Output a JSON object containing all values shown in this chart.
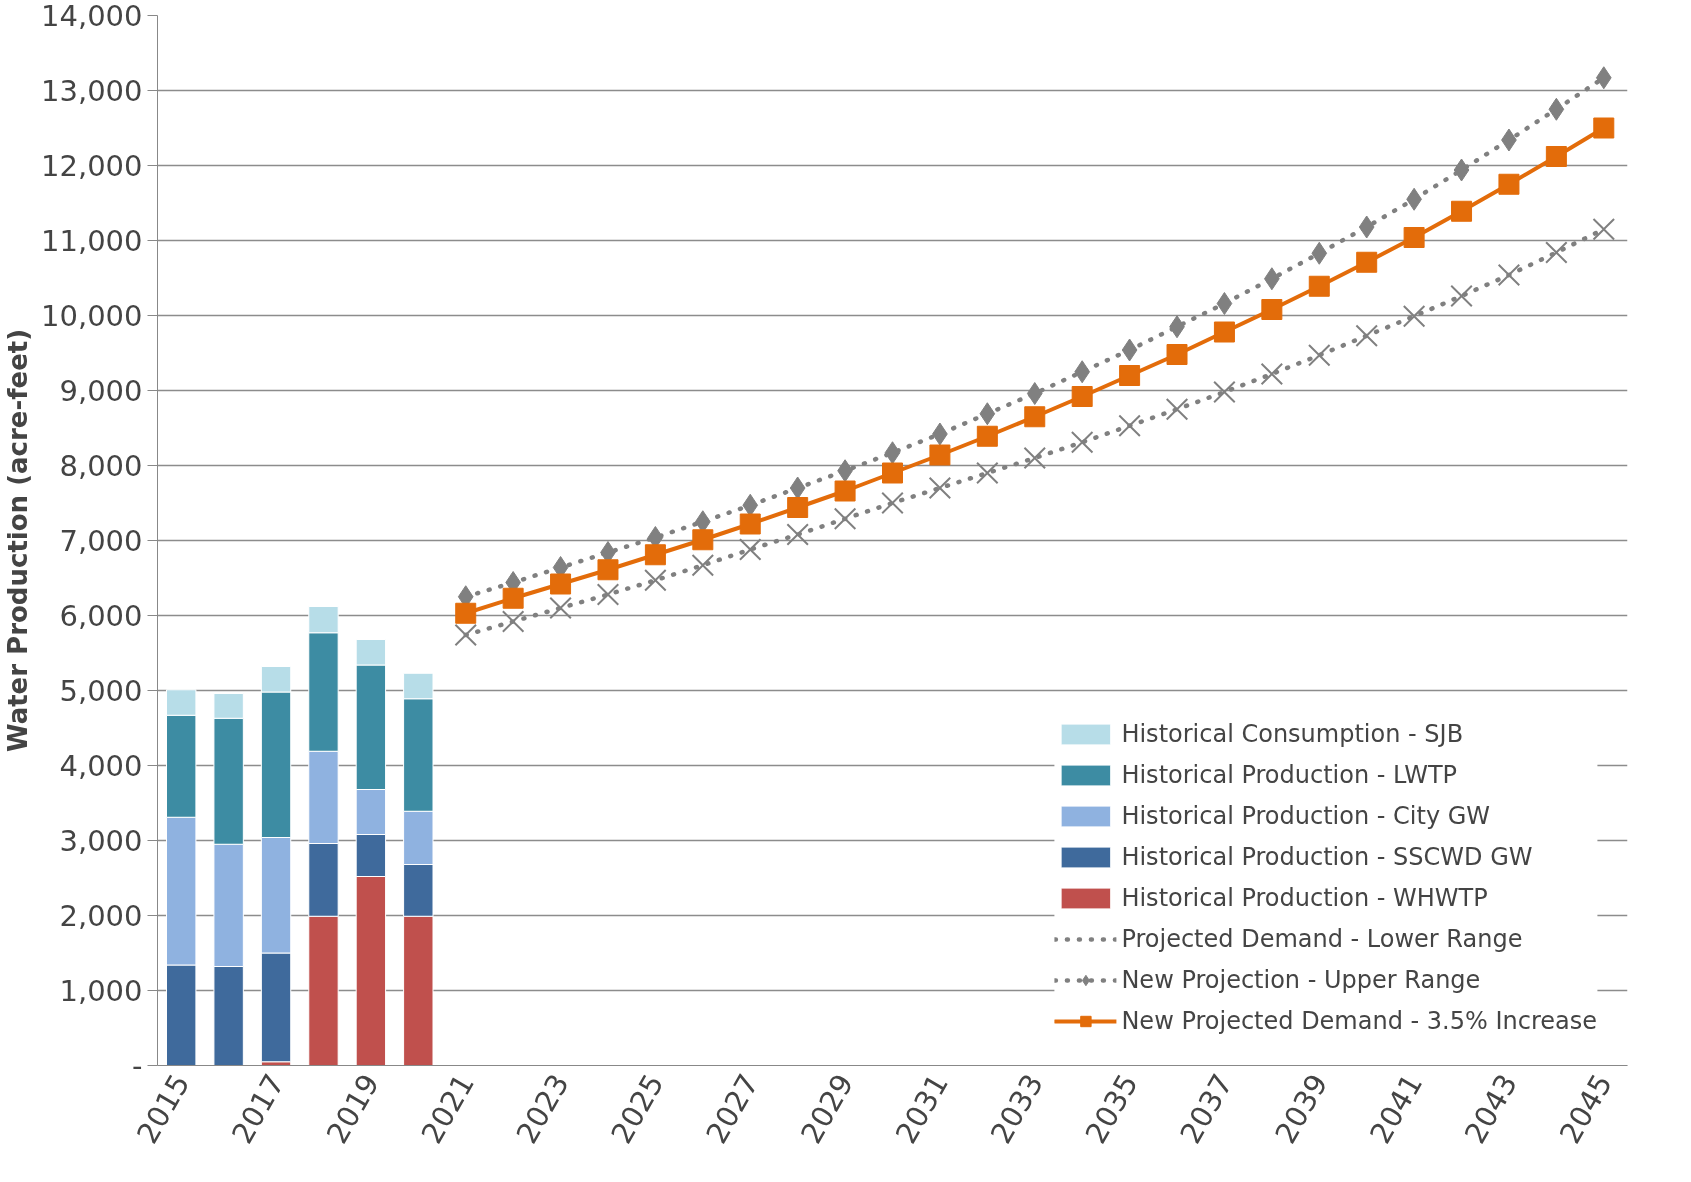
{
  "chart_data": {
    "type": "bar",
    "stacked": true,
    "ylabel": "Water Production (acre-feet)",
    "categories": [
      "2015",
      null,
      "2017",
      null,
      "2019",
      null,
      "2021",
      null,
      "2023",
      null,
      "2025",
      null,
      "2027",
      null,
      "2029",
      null,
      "2031",
      null,
      "2033",
      null,
      "2035",
      null,
      "2037",
      null,
      "2039",
      null,
      "2041",
      null,
      "2043",
      null,
      "2045"
    ],
    "ylim": [
      0,
      14000
    ],
    "yticks": [
      {
        "value": 0,
        "label": "-"
      },
      {
        "value": 1000,
        "label": "1,000"
      },
      {
        "value": 2000,
        "label": "2,000"
      },
      {
        "value": 3000,
        "label": "3,000"
      },
      {
        "value": 4000,
        "label": "4,000"
      },
      {
        "value": 5000,
        "label": "5,000"
      },
      {
        "value": 6000,
        "label": "6,000"
      },
      {
        "value": 7000,
        "label": "7,000"
      },
      {
        "value": 8000,
        "label": "8,000"
      },
      {
        "value": 9000,
        "label": "9,000"
      },
      {
        "value": 10000,
        "label": "10,000"
      },
      {
        "value": 11000,
        "label": "11,000"
      },
      {
        "value": 12000,
        "label": "12,000"
      },
      {
        "value": 13000,
        "label": "13,000"
      },
      {
        "value": 14000,
        "label": "14,000"
      }
    ],
    "grid": "y",
    "legend": "bottom right",
    "series": [
      {
        "name": "Historical Production - WHWTP",
        "color": "#c0504d",
        "values": [
          0,
          0,
          50,
          1990,
          2520,
          1990,
          null,
          null,
          null,
          null,
          null,
          null,
          null,
          null,
          null,
          null,
          null,
          null,
          null,
          null,
          null,
          null,
          null,
          null,
          null,
          null,
          null,
          null,
          null,
          null,
          null
        ]
      },
      {
        "name": "Historical Production - SSCWD GW",
        "color": "#3f6a9c",
        "values": [
          1340,
          1320,
          1450,
          970,
          560,
          690,
          null,
          null,
          null,
          null,
          null,
          null,
          null,
          null,
          null,
          null,
          null,
          null,
          null,
          null,
          null,
          null,
          null,
          null,
          null,
          null,
          null,
          null,
          null,
          null,
          null
        ]
      },
      {
        "name": "Historical Production - City GW",
        "color": "#8fb2e0",
        "values": [
          1970,
          1630,
          1540,
          1230,
          600,
          710,
          null,
          null,
          null,
          null,
          null,
          null,
          null,
          null,
          null,
          null,
          null,
          null,
          null,
          null,
          null,
          null,
          null,
          null,
          null,
          null,
          null,
          null,
          null,
          null,
          null
        ]
      },
      {
        "name": "Historical Production - LWTP",
        "color": "#3d8ca3",
        "values": [
          1360,
          1680,
          1940,
          1580,
          1660,
          1500,
          null,
          null,
          null,
          null,
          null,
          null,
          null,
          null,
          null,
          null,
          null,
          null,
          null,
          null,
          null,
          null,
          null,
          null,
          null,
          null,
          null,
          null,
          null,
          null,
          null
        ]
      },
      {
        "name": "Historical Consumption - SJB",
        "color": "#b7dde8",
        "values": [
          340,
          330,
          340,
          350,
          340,
          340,
          null,
          null,
          null,
          null,
          null,
          null,
          null,
          null,
          null,
          null,
          null,
          null,
          null,
          null,
          null,
          null,
          null,
          null,
          null,
          null,
          null,
          null,
          null,
          null,
          null
        ]
      },
      {
        "name": "Projected Demand - Lower Range",
        "type": "line",
        "color": "#808080",
        "marker": "cross",
        "line_style": "dotted",
        "values": [
          null,
          null,
          null,
          null,
          null,
          null,
          5740,
          5920,
          6100,
          6280,
          6470,
          6670,
          6880,
          7080,
          7290,
          7500,
          7700,
          7900,
          8100,
          8310,
          8530,
          8750,
          8980,
          9220,
          9470,
          9730,
          9990,
          10260,
          10540,
          10840,
          11150
        ]
      },
      {
        "name": "New Projection - Upper Range",
        "type": "line",
        "color": "#808080",
        "marker": "diamond",
        "line_style": "dotted",
        "values": [
          null,
          null,
          null,
          null,
          null,
          null,
          6250,
          6440,
          6640,
          6840,
          7040,
          7250,
          7470,
          7700,
          7930,
          8170,
          8420,
          8690,
          8960,
          9250,
          9540,
          9850,
          10160,
          10490,
          10830,
          11180,
          11550,
          11940,
          12340,
          12750,
          13170
        ]
      },
      {
        "name": "New Projected Demand - 3.5% Increase",
        "type": "line",
        "color": "#e36c0a",
        "marker": "square",
        "line_style": "solid",
        "values": [
          null,
          null,
          null,
          null,
          null,
          null,
          6030,
          6230,
          6420,
          6610,
          6810,
          7010,
          7220,
          7440,
          7660,
          7900,
          8140,
          8390,
          8650,
          8920,
          9200,
          9480,
          9780,
          10080,
          10390,
          10710,
          11040,
          11390,
          11750,
          12120,
          12500
        ]
      }
    ]
  }
}
